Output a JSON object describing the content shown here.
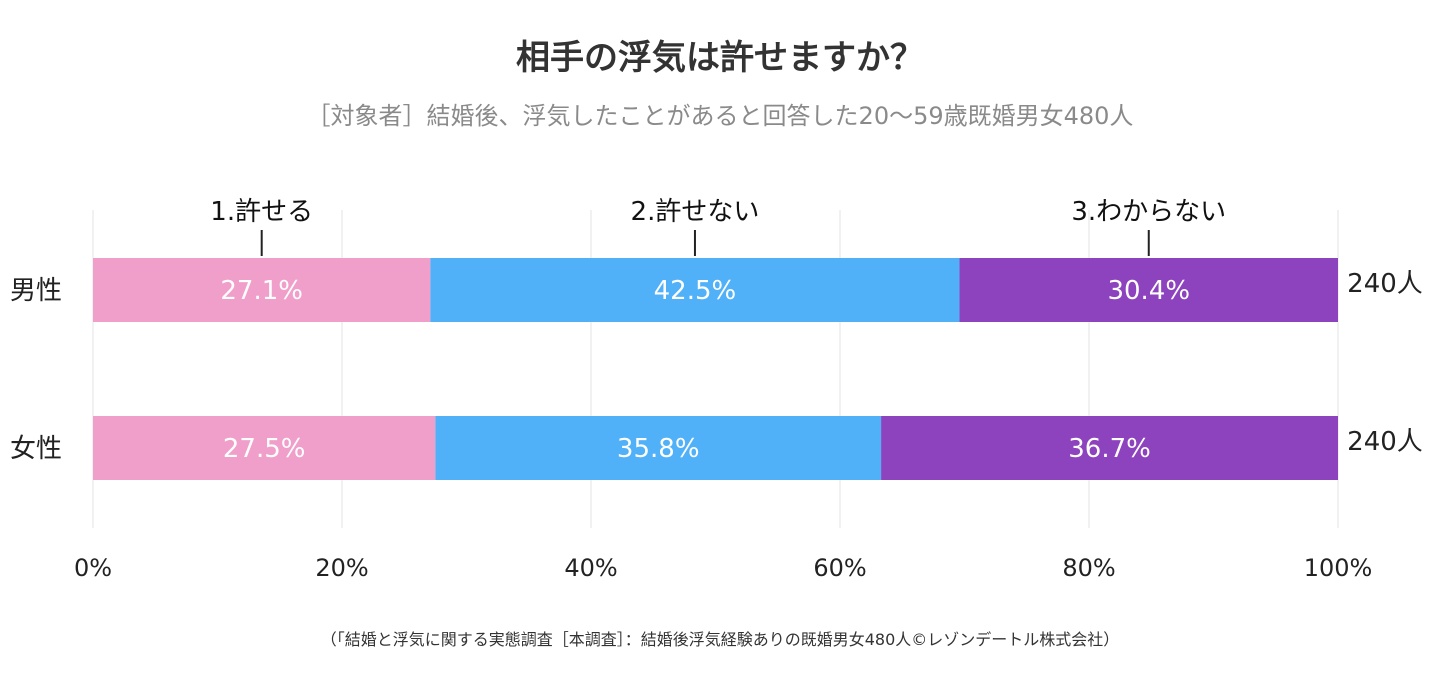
{
  "chart_data": {
    "type": "bar",
    "orientation": "horizontal-stacked-100",
    "title": "相手の浮気は許せますか？",
    "subtitle": "［対象者］結婚後、浮気したことがあると回答した20〜59歳既婚男女480人",
    "source": "（「結婚と浮気に関する実態調査［本調査］：結婚後浮気経験ありの既婚男女480人©レゾンデートル株式会社）",
    "categories": [
      "男性",
      "女性"
    ],
    "totals": [
      "240人",
      "240人"
    ],
    "series": [
      {
        "name": "1.許せる",
        "color": "#f09fca",
        "values": [
          27.1,
          27.5
        ],
        "labels": [
          "27.1%",
          "27.5%"
        ]
      },
      {
        "name": "2.許せない",
        "color": "#51b1f8",
        "values": [
          42.5,
          35.8
        ],
        "labels": [
          "42.5%",
          "35.8%"
        ]
      },
      {
        "name": "3.わからない",
        "color": "#8d42be",
        "values": [
          30.4,
          36.7
        ],
        "labels": [
          "30.4%",
          "36.7%"
        ]
      }
    ],
    "xlim": [
      0,
      100
    ],
    "xticks": [
      0,
      20,
      40,
      60,
      80,
      100
    ],
    "xtick_labels": [
      "0%",
      "20%",
      "40%",
      "60%",
      "80%",
      "100%"
    ],
    "grid": true,
    "legend": "callouts-above-first-bar"
  }
}
